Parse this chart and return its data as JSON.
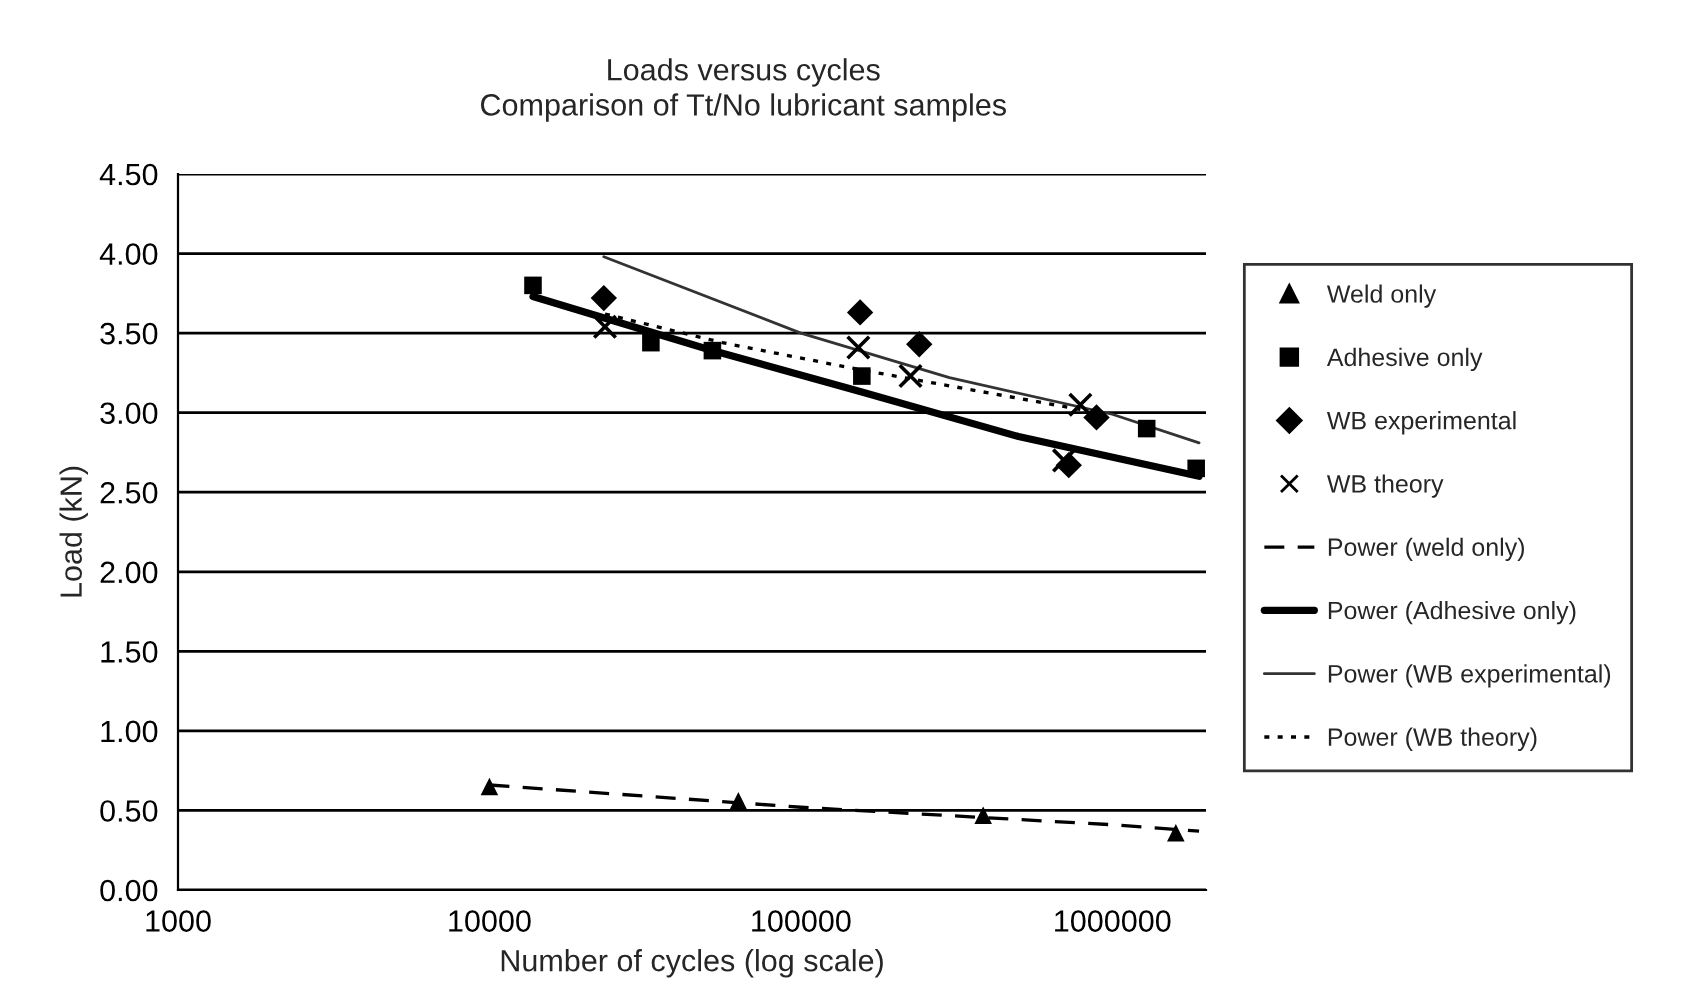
{
  "chart_data": {
    "type": "scatter",
    "title": "Loads versus cycles",
    "subtitle": "Comparison of Tt/No lubricant samples",
    "xlabel": "Number of cycles (log scale)",
    "ylabel": "Load (kN)",
    "log": "x",
    "xlim": [
      1000,
      2000000
    ],
    "xticks": [
      1000,
      10000,
      100000,
      1000000
    ],
    "ylim": [
      0,
      4.5
    ],
    "yticks": [
      {
        "value": 0,
        "label": "0.00"
      },
      {
        "value": 0.5,
        "label": "0.50"
      },
      {
        "value": 1,
        "label": "1.00"
      },
      {
        "value": 1.5,
        "label": "1.50"
      },
      {
        "value": 2,
        "label": "2.00"
      },
      {
        "value": 2.5,
        "label": "2.50"
      },
      {
        "value": 3,
        "label": "3.00"
      },
      {
        "value": 3.5,
        "label": "3.50"
      },
      {
        "value": 4,
        "label": "4.00"
      },
      {
        "value": 4.5,
        "label": "4.50"
      }
    ],
    "grid": "y",
    "legend": "right",
    "series": [
      {
        "name": "Weld only",
        "marker": "triangle",
        "color": "#000000",
        "x": [
          10000,
          63000,
          385000,
          1600000
        ],
        "values": [
          0.65,
          0.56,
          0.47,
          0.36
        ]
      },
      {
        "name": "Adhesive only",
        "marker": "square",
        "color": "#000000",
        "x": [
          13800,
          33000,
          52000,
          157000,
          1290000,
          1860000
        ],
        "values": [
          3.8,
          3.44,
          3.39,
          3.23,
          2.9,
          2.65
        ]
      },
      {
        "name": "WB experimental",
        "marker": "diamond",
        "color": "#000000",
        "x": [
          23300,
          155000,
          240000,
          725000,
          890000
        ],
        "values": [
          3.72,
          3.63,
          3.43,
          2.67,
          2.97
        ]
      },
      {
        "name": "WB theory",
        "marker": "cross",
        "color": "#000000",
        "x": [
          23500,
          153000,
          225000,
          700000,
          790000
        ],
        "values": [
          3.54,
          3.41,
          3.23,
          2.7,
          3.05
        ]
      },
      {
        "name": "Power (weld only)",
        "type": "line",
        "marker": "none",
        "line_style": "dashed",
        "color": "#000000",
        "x": [
          10000,
          100000,
          1000000,
          1900000
        ],
        "values": [
          0.66,
          0.52,
          0.41,
          0.37
        ]
      },
      {
        "name": "Power (Adhesive only)",
        "type": "line",
        "marker": "none",
        "line_style": "solid",
        "color": "#000000",
        "x": [
          13800,
          50000,
          157000,
          500000,
          1900000
        ],
        "values": [
          3.73,
          3.4,
          3.13,
          2.85,
          2.6
        ]
      },
      {
        "name": "Power (WB experimental)",
        "type": "line",
        "marker": "none",
        "line_style": "solid",
        "color": "#333333",
        "x": [
          23300,
          100000,
          300000,
          1000000,
          1900000
        ],
        "values": [
          3.98,
          3.5,
          3.22,
          2.99,
          2.81
        ]
      },
      {
        "name": "Power (WB theory)",
        "type": "line",
        "marker": "none",
        "line_style": "dotted",
        "color": "#000000",
        "x": [
          23500,
          56000,
          155000,
          790000
        ],
        "values": [
          3.62,
          3.44,
          3.27,
          3.02
        ]
      }
    ]
  }
}
